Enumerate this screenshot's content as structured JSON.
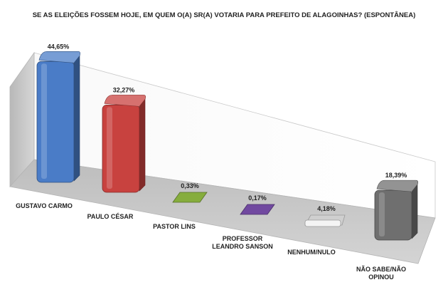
{
  "chart_data": {
    "type": "bar",
    "title": "SE AS ELEIÇÕES FOSSEM HOJE, EM QUEM O(A) SR(A) VOTARIA PARA PREFEITO DE ALAGOINHAS? (ESPONTÂNEA)",
    "categories": [
      [
        "GUSTAVO CARMO"
      ],
      [
        "PAULO CÉSAR"
      ],
      [
        "PASTOR LINS"
      ],
      [
        "PROFESSOR",
        "LEANDRO SANSON"
      ],
      [
        "NENHUM/NULO"
      ],
      [
        "NÃO SABE/NÃO",
        "OPINOU"
      ]
    ],
    "values": [
      44.65,
      32.27,
      0.33,
      0.17,
      4.18,
      18.39
    ],
    "value_labels": [
      "44,65%",
      "32,27%",
      "0,33%",
      "0,17%",
      "4,18%",
      "18,39%"
    ],
    "colors": [
      "#4a7cc7",
      "#c8423f",
      "#86ad3d",
      "#7149a0",
      "#f4f4f4",
      "#6f6f6f"
    ],
    "ylim": [
      0,
      50
    ],
    "style": "3d-perspective",
    "grid": false,
    "legend": "none"
  }
}
